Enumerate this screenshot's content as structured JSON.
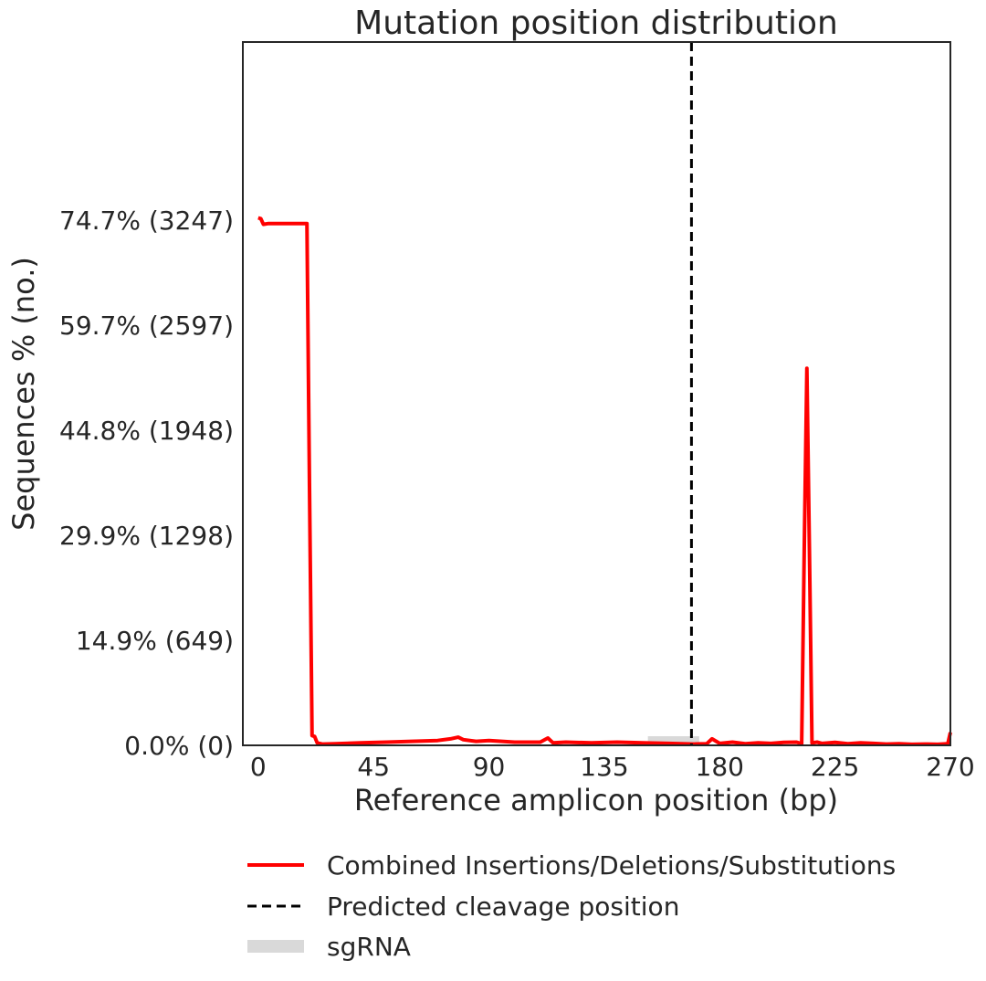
{
  "chart_data": {
    "type": "line",
    "title": "Mutation position distribution",
    "xlabel": "Reference amplicon position (bp)",
    "ylabel": "Sequences % (no.)",
    "xlim": [
      -6,
      270
    ],
    "ylim": [
      0,
      4347
    ],
    "xticks": [
      0,
      45,
      90,
      135,
      180,
      225,
      270
    ],
    "xtick_labels": [
      "0",
      "45",
      "90",
      "135",
      "180",
      "225",
      "270"
    ],
    "yticks": [
      0,
      649,
      1298,
      1948,
      2597,
      3247
    ],
    "ytick_labels": [
      "0.0% (0)",
      "14.9% (649)",
      "29.9% (1298)",
      "44.8% (1948)",
      "59.7% (2597)",
      "74.7% (3247)"
    ],
    "grid": false,
    "legend_position": "below",
    "series": [
      {
        "name": "Combined Insertions/Deletions/Substitutions",
        "color": "#ff0000",
        "style": "solid",
        "x": [
          0,
          1,
          2,
          4,
          8,
          12,
          16,
          19,
          20,
          21,
          22,
          23,
          25,
          30,
          40,
          50,
          60,
          70,
          75,
          78,
          80,
          85,
          90,
          100,
          110,
          113,
          115,
          120,
          130,
          140,
          150,
          160,
          165,
          170,
          175,
          177,
          180,
          185,
          190,
          195,
          200,
          205,
          210,
          212,
          213,
          214,
          215,
          216,
          218,
          220,
          225,
          230,
          235,
          240,
          245,
          250,
          255,
          260,
          265,
          269,
          270
        ],
        "y": [
          3260,
          3255,
          3220,
          3225,
          3225,
          3225,
          3225,
          3225,
          1600,
          60,
          55,
          15,
          8,
          10,
          15,
          20,
          25,
          30,
          40,
          50,
          35,
          25,
          30,
          20,
          20,
          45,
          15,
          20,
          15,
          20,
          15,
          12,
          10,
          8,
          10,
          40,
          12,
          20,
          10,
          15,
          12,
          18,
          20,
          10,
          1200,
          2330,
          1200,
          15,
          20,
          12,
          18,
          10,
          15,
          12,
          8,
          10,
          6,
          8,
          6,
          10,
          80
        ]
      }
    ],
    "vlines": [
      {
        "name": "Predicted cleavage position",
        "x": 169,
        "color": "#000000",
        "style": "dashed"
      }
    ],
    "shaded_regions": [
      {
        "name": "sgRNA",
        "x_start": 152,
        "x_end": 172,
        "color": "#d9d9d9"
      }
    ]
  }
}
